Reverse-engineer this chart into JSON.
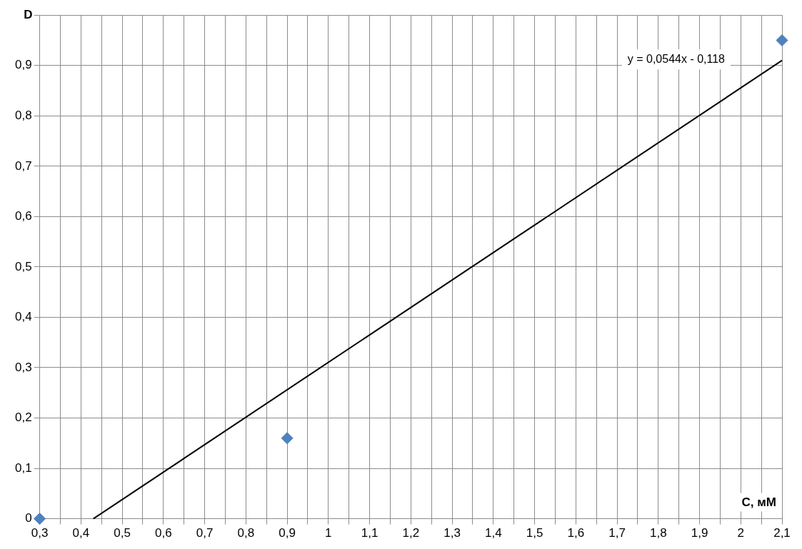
{
  "chart_data": {
    "type": "scatter",
    "xlabel": "C, мМ",
    "ylabel": "D",
    "annotations": [
      "y = 0,0544x - 0,118"
    ],
    "series": [
      {
        "type": "scatter",
        "color": "#4f81bd",
        "x": [
          0.3,
          0.9,
          2.1
        ],
        "values": [
          0,
          0.16,
          0.95
        ],
        "marker": "diamond"
      },
      {
        "type": "line",
        "color": "#000000",
        "x": [
          0.43,
          2.1
        ],
        "values": [
          0,
          0.91
        ],
        "marker": "none"
      }
    ],
    "xlim": [
      0.3,
      2.1
    ],
    "ylim": [
      0,
      1
    ],
    "xticks": [
      {
        "value": 0.3,
        "label": "0,3"
      },
      {
        "value": 0.35,
        "label": null
      },
      {
        "value": 0.4,
        "label": "0,4"
      },
      {
        "value": 0.45,
        "label": null
      },
      {
        "value": 0.5,
        "label": "0,5"
      },
      {
        "value": 0.55,
        "label": null
      },
      {
        "value": 0.6,
        "label": "0,6"
      },
      {
        "value": 0.65,
        "label": null
      },
      {
        "value": 0.7,
        "label": "0,7"
      },
      {
        "value": 0.75,
        "label": null
      },
      {
        "value": 0.8,
        "label": "0,8"
      },
      {
        "value": 0.85,
        "label": null
      },
      {
        "value": 0.9,
        "label": "0,9"
      },
      {
        "value": 0.95,
        "label": null
      },
      {
        "value": 1,
        "label": "1"
      },
      {
        "value": 1.05,
        "label": null
      },
      {
        "value": 1.1,
        "label": "1,1"
      },
      {
        "value": 1.15,
        "label": null
      },
      {
        "value": 1.2,
        "label": "1,2"
      },
      {
        "value": 1.25,
        "label": null
      },
      {
        "value": 1.3,
        "label": "1,3"
      },
      {
        "value": 1.35,
        "label": null
      },
      {
        "value": 1.4,
        "label": "1,4"
      },
      {
        "value": 1.45,
        "label": null
      },
      {
        "value": 1.5,
        "label": "1,5"
      },
      {
        "value": 1.55,
        "label": null
      },
      {
        "value": 1.6,
        "label": "1,6"
      },
      {
        "value": 1.65,
        "label": null
      },
      {
        "value": 1.7,
        "label": "1,7"
      },
      {
        "value": 1.75,
        "label": null
      },
      {
        "value": 1.8,
        "label": "1,8"
      },
      {
        "value": 1.85,
        "label": null
      },
      {
        "value": 1.9,
        "label": "1,9"
      },
      {
        "value": 1.95,
        "label": null
      },
      {
        "value": 2,
        "label": "2"
      },
      {
        "value": 2.05,
        "label": null
      },
      {
        "value": 2.1,
        "label": "2,1"
      }
    ],
    "yticks": [
      {
        "value": 0,
        "label": "0"
      },
      {
        "value": 0.1,
        "label": "0,1"
      },
      {
        "value": 0.2,
        "label": "0,2"
      },
      {
        "value": 0.3,
        "label": "0,3"
      },
      {
        "value": 0.4,
        "label": "0,4"
      },
      {
        "value": 0.5,
        "label": "0,5"
      },
      {
        "value": 0.6,
        "label": "0,6"
      },
      {
        "value": 0.7,
        "label": "0,7"
      },
      {
        "value": 0.8,
        "label": "0,8"
      },
      {
        "value": 0.9,
        "label": "0,9"
      },
      {
        "value": 1,
        "label": null
      }
    ],
    "grid": true,
    "legend": false
  }
}
